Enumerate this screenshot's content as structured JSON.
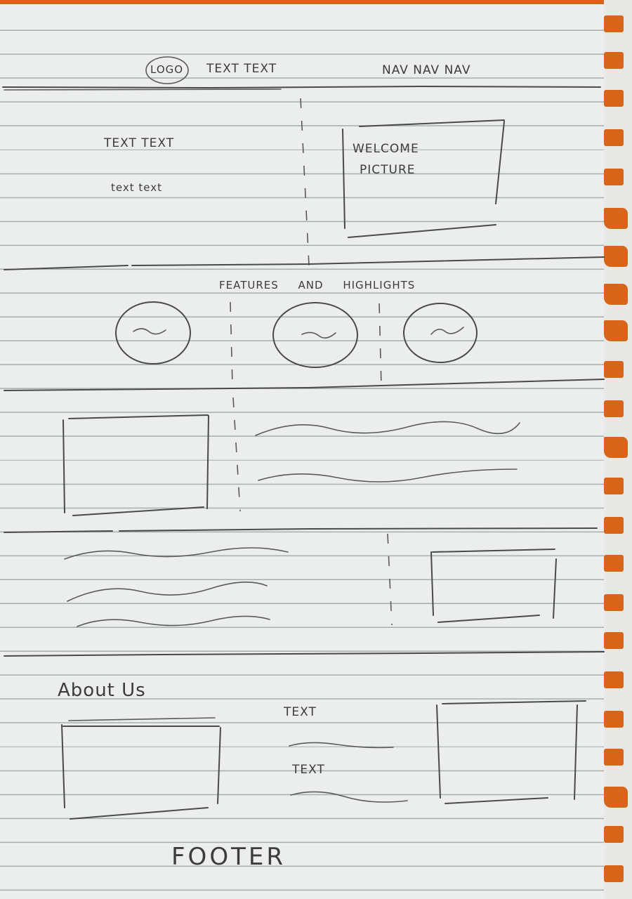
{
  "header": {
    "logo": "LOGO",
    "text": "TEXT TEXT",
    "nav": "NAV NAV NAV"
  },
  "hero": {
    "heading": "TEXT TEXT",
    "subtext": "text text",
    "picture_label_line1": "WELCOME",
    "picture_label_line2": "PICTURE"
  },
  "features": {
    "title": "FEATURES AND HIGHLIGHTS"
  },
  "about": {
    "title": "About Us",
    "text1": "TEXT",
    "text2": "TEXT"
  },
  "footer": {
    "label": "FOOTER"
  },
  "colors": {
    "paper": "#eceeee",
    "rule_lines": "#a9aeb1",
    "ink": "#3c3c3c",
    "spiral_holes": "#d9651a"
  }
}
